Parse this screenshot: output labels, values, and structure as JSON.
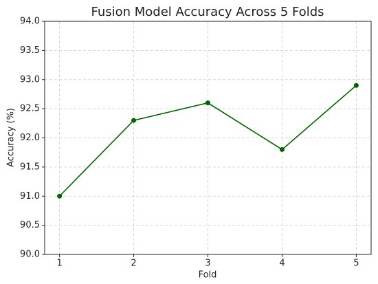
{
  "chart_data": {
    "type": "line",
    "title": "Fusion Model Accuracy Across 5 Folds",
    "x_label": "Fold",
    "y_label": "Accuracy (%)",
    "x": [
      1,
      2,
      3,
      4,
      5
    ],
    "series": [
      {
        "name": "Accuracy",
        "color": "#006400",
        "values": [
          91.0,
          92.3,
          92.6,
          91.8,
          92.9
        ]
      }
    ],
    "xlim": [
      0.8,
      5.2
    ],
    "xticks": [
      1,
      2,
      3,
      4,
      5
    ],
    "ylim": [
      90,
      94
    ],
    "yticks": [
      {
        "value": 90,
        "label": "90.0"
      },
      90.5,
      {
        "value": 91,
        "label": "91.0"
      },
      91.5,
      {
        "value": 92,
        "label": "92.0"
      },
      92.5,
      {
        "value": 93,
        "label": "93.0"
      },
      93.5,
      {
        "value": 94,
        "label": "94.0"
      }
    ],
    "grid": true
  }
}
